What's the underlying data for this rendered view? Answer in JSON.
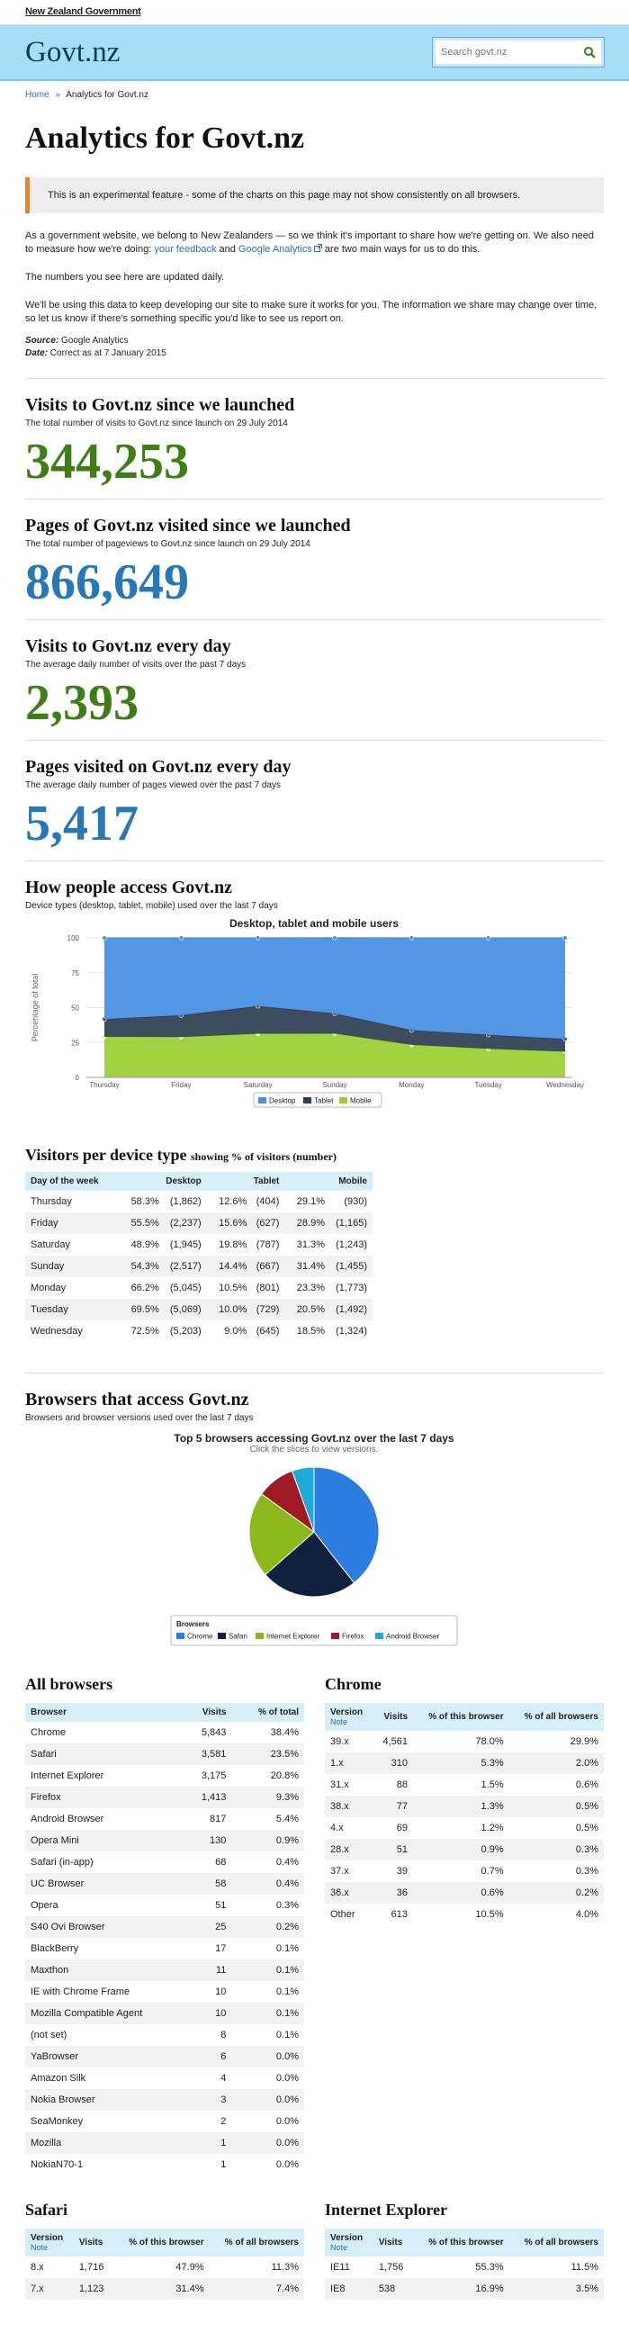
{
  "gov_logo": "New Zealand Government",
  "site_title": "Govt.nz",
  "search": {
    "placeholder": "Search govt.nz"
  },
  "breadcrumb": {
    "home": "Home",
    "sep": "»",
    "current": "Analytics for Govt.nz"
  },
  "page_title": "Analytics for Govt.nz",
  "notice": "This is an experimental feature - some of the charts on this page may not show consistently on all browsers.",
  "intro": {
    "p1_a": "As a government website, we belong to New Zealanders — so we think it's important to share how we're getting on. We also need to measure how we're doing: ",
    "link_feedback": "your feedback",
    "p1_and": " and ",
    "link_ga": "Google Analytics",
    "p1_b": " are two main ways for us to do this.",
    "p2": "The numbers you see here are updated daily.",
    "p3": "We'll be using this data to keep developing our site to make sure it works for you. The information we share may change over time, so let us know if there's something specific you'd like to see us report on.",
    "source_label": "Source:",
    "source": "Google Analytics",
    "date_label": "Date:",
    "date": "Correct as at 7 January 2015"
  },
  "stats": [
    {
      "title": "Visits to Govt.nz since we launched",
      "sub": "The total number of visits to Govt.nz since launch on 29 July 2014",
      "value": "344,253"
    },
    {
      "title": "Pages of Govt.nz visited since we launched",
      "sub": "The total number of pageviews to Govt.nz since launch on 29 July 2014",
      "value": "866,649"
    },
    {
      "title": "Visits to Govt.nz every day",
      "sub": "The average daily number of visits over the past 7 days",
      "value": "2,393"
    },
    {
      "title": "Pages visited on Govt.nz every day",
      "sub": "The average daily number of pages viewed over the past 7 days",
      "value": "5,417"
    }
  ],
  "access": {
    "title": "How people access Govt.nz",
    "sub": "Device types (desktop, tablet, mobile) used over the last 7 days"
  },
  "colors": {
    "desktop": "#4a90e2",
    "tablet": "#2c3e50",
    "mobile": "#9acd32",
    "chrome": "#2b7de0",
    "safari": "#10213f",
    "ie": "#8db81c",
    "firefox": "#a01a26",
    "android": "#1eaad8"
  },
  "chart_data": [
    {
      "type": "area",
      "title": "Desktop, tablet and mobile users",
      "ylabel": "Percentage of total",
      "xlabel": "",
      "ylim": [
        0,
        100
      ],
      "yticks": [
        0,
        25,
        50,
        75,
        100
      ],
      "categories": [
        "Thursday",
        "Friday",
        "Saturday",
        "Sunday",
        "Monday",
        "Tuesday",
        "Wednesday"
      ],
      "stacked": true,
      "legend": "bottom-center",
      "series": [
        {
          "name": "Mobile",
          "values": [
            29.1,
            28.9,
            31.3,
            31.4,
            23.3,
            20.5,
            18.5
          ]
        },
        {
          "name": "Tablet",
          "values": [
            12.6,
            15.6,
            19.8,
            14.4,
            10.5,
            10.0,
            9.0
          ]
        },
        {
          "name": "Desktop",
          "values": [
            58.3,
            55.5,
            48.9,
            54.3,
            66.2,
            69.5,
            72.5
          ]
        }
      ]
    },
    {
      "type": "pie",
      "title": "Top 5 browsers accessing Govt.nz over the last 7 days",
      "subtitle": "Click the slices to view versions.",
      "legend_title": "Browsers",
      "categories": [
        "Chrome",
        "Safari",
        "Internet Explorer",
        "Firefox",
        "Android Browser"
      ],
      "values": [
        5843,
        3581,
        3175,
        1413,
        817
      ]
    }
  ],
  "device_table": {
    "title": "Visitors per device type",
    "title_small": "showing % of visitors (number)",
    "headers": [
      "Day of the week",
      "Desktop",
      "Tablet",
      "Mobile"
    ],
    "rows": [
      [
        "Thursday",
        "58.3%",
        "(1,862)",
        "12.6%",
        "(404)",
        "29.1%",
        "(930)"
      ],
      [
        "Friday",
        "55.5%",
        "(2,237)",
        "15.6%",
        "(627)",
        "28.9%",
        "(1,165)"
      ],
      [
        "Saturday",
        "48.9%",
        "(1,945)",
        "19.8%",
        "(787)",
        "31.3%",
        "(1,243)"
      ],
      [
        "Sunday",
        "54.3%",
        "(2,517)",
        "14.4%",
        "(667)",
        "31.4%",
        "(1,455)"
      ],
      [
        "Monday",
        "66.2%",
        "(5,045)",
        "10.5%",
        "(801)",
        "23.3%",
        "(1,773)"
      ],
      [
        "Tuesday",
        "69.5%",
        "(5,069)",
        "10.0%",
        "(729)",
        "20.5%",
        "(1,492)"
      ],
      [
        "Wednesday",
        "72.5%",
        "(5,203)",
        "9.0%",
        "(645)",
        "18.5%",
        "(1,324)"
      ]
    ]
  },
  "browsers": {
    "title": "Browsers that access Govt.nz",
    "sub": "Browsers and browser versions used over the last 7 days"
  },
  "all_browsers": {
    "title": "All browsers",
    "headers": [
      "Browser",
      "Visits",
      "% of total"
    ],
    "rows": [
      [
        "Chrome",
        "5,843",
        "38.4%"
      ],
      [
        "Safari",
        "3,581",
        "23.5%"
      ],
      [
        "Internet Explorer",
        "3,175",
        "20.8%"
      ],
      [
        "Firefox",
        "1,413",
        "9.3%"
      ],
      [
        "Android Browser",
        "817",
        "5.4%"
      ],
      [
        "Opera Mini",
        "130",
        "0.9%"
      ],
      [
        "Safari (in-app)",
        "68",
        "0.4%"
      ],
      [
        "UC Browser",
        "58",
        "0.4%"
      ],
      [
        "Opera",
        "51",
        "0.3%"
      ],
      [
        "S40 Ovi Browser",
        "25",
        "0.2%"
      ],
      [
        "BlackBerry",
        "17",
        "0.1%"
      ],
      [
        "Maxthon",
        "11",
        "0.1%"
      ],
      [
        "IE with Chrome Frame",
        "10",
        "0.1%"
      ],
      [
        "Mozilla Compatible Agent",
        "10",
        "0.1%"
      ],
      [
        "(not set)",
        "8",
        "0.1%"
      ],
      [
        "YaBrowser",
        "6",
        "0.0%"
      ],
      [
        "Amazon Silk",
        "4",
        "0.0%"
      ],
      [
        "Nokia Browser",
        "3",
        "0.0%"
      ],
      [
        "SeaMonkey",
        "2",
        "0.0%"
      ],
      [
        "Mozilla",
        "1",
        "0.0%"
      ],
      [
        "NokiaN70-1",
        "1",
        "0.0%"
      ]
    ]
  },
  "chrome": {
    "title": "Chrome",
    "headers": [
      "Version",
      "Visits",
      "% of this browser",
      "% of all browsers"
    ],
    "note": "Note",
    "rows": [
      [
        "39.x",
        "4,561",
        "78.0%",
        "29.9%"
      ],
      [
        "1.x",
        "310",
        "5.3%",
        "2.0%"
      ],
      [
        "31.x",
        "88",
        "1.5%",
        "0.6%"
      ],
      [
        "38.x",
        "77",
        "1.3%",
        "0.5%"
      ],
      [
        "4.x",
        "69",
        "1.2%",
        "0.5%"
      ],
      [
        "28.x",
        "51",
        "0.9%",
        "0.3%"
      ],
      [
        "37.x",
        "39",
        "0.7%",
        "0.3%"
      ],
      [
        "36.x",
        "36",
        "0.6%",
        "0.2%"
      ],
      [
        "Other",
        "613",
        "10.5%",
        "4.0%"
      ]
    ]
  },
  "safari": {
    "title": "Safari",
    "headers": [
      "Version",
      "Visits",
      "% of this browser",
      "% of all browsers"
    ],
    "note": "Note",
    "rows": [
      [
        "8.x",
        "1,716",
        "47.9%",
        "11.3%"
      ],
      [
        "7.x",
        "1,123",
        "31.4%",
        "7.4%"
      ]
    ]
  },
  "ie": {
    "title": "Internet Explorer",
    "headers": [
      "Version",
      "Visits",
      "% of this browser",
      "% of all browsers"
    ],
    "note": "Note",
    "rows": [
      [
        "IE11",
        "1,756",
        "55.3%",
        "11.5%"
      ],
      [
        "IE8",
        "538",
        "16.9%",
        "3.5%"
      ]
    ]
  }
}
